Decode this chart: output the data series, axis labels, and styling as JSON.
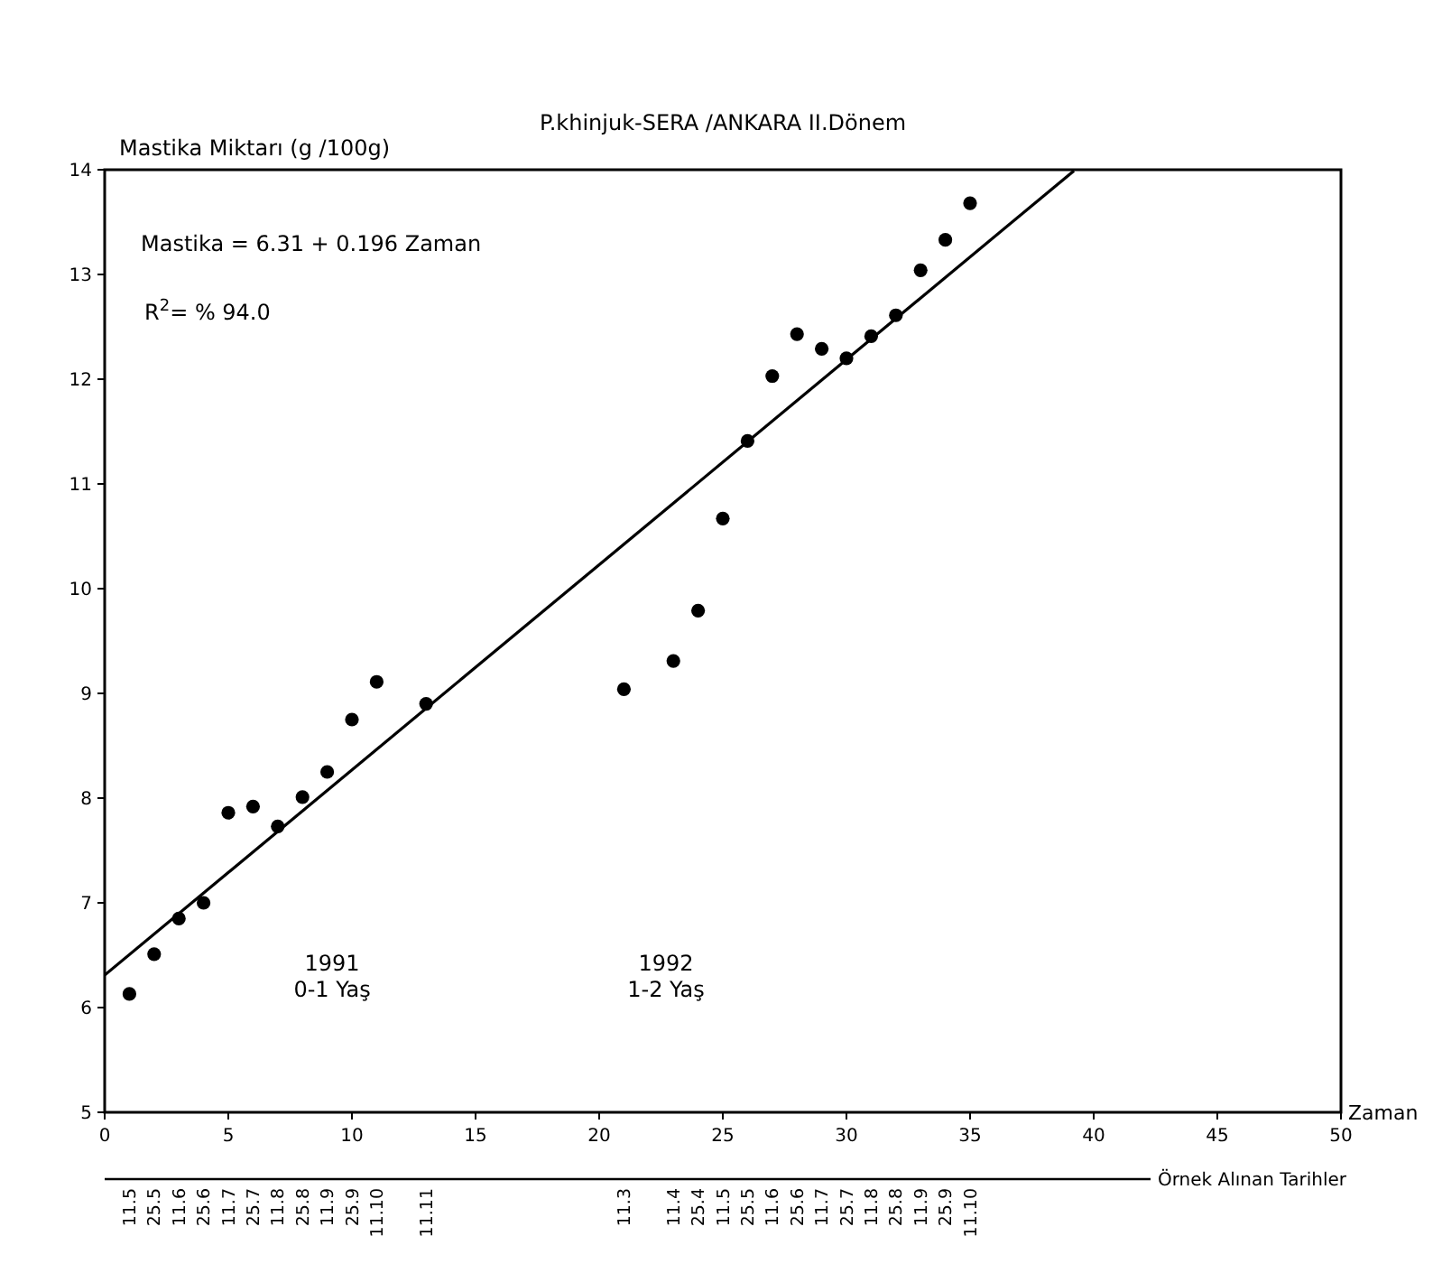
{
  "chart_data": {
    "type": "scatter",
    "title": "P.khinjuk-SERA /ANKARA II.Dönem",
    "ylabel": "Mastika Miktarı (g /100g)",
    "xlabel": "Zaman",
    "xlim": [
      0,
      50
    ],
    "xticks": [
      0,
      5,
      10,
      15,
      20,
      25,
      30,
      35,
      40,
      45,
      50
    ],
    "ylim": [
      5,
      14
    ],
    "yticks": [
      5,
      6,
      7,
      8,
      9,
      10,
      11,
      12,
      13,
      14
    ],
    "grid": false,
    "series": [
      {
        "color": "#000000",
        "marker": "circle",
        "x": [
          1,
          2,
          3,
          4,
          5,
          6,
          7,
          8,
          9,
          10,
          11,
          13,
          21,
          23,
          24,
          25,
          26,
          27,
          28,
          29,
          30,
          31,
          32,
          33,
          34,
          35
        ],
        "values": [
          6.13,
          6.51,
          6.85,
          7.0,
          7.86,
          7.92,
          7.73,
          8.01,
          8.25,
          8.75,
          9.11,
          8.9,
          9.04,
          9.31,
          9.79,
          10.67,
          11.41,
          12.03,
          12.43,
          12.29,
          12.2,
          12.41,
          12.61,
          13.04,
          13.33,
          13.68
        ]
      },
      {
        "type": "line",
        "color": "#000000",
        "line_style": "solid",
        "x": [
          0,
          39.2
        ],
        "values": [
          6.31,
          13.99
        ]
      }
    ],
    "annotations": [
      "Mastika = 6.31 + 0.196 Zaman",
      "R$^{2}$= % 94.0",
      "1991\n0-1 Yaş",
      "1992\n1-2 Yaş",
      "Örnek Alınan Tarihler",
      "11.5",
      "25.5",
      "11.6",
      "25.6",
      "11.7",
      "25.7",
      "11.8",
      "25.8",
      "11.9",
      "25.9",
      "11.10",
      "11.11",
      "11.3",
      "11.4",
      "25.4",
      "11.5",
      "25.5",
      "11.6",
      "25.6",
      "11.7",
      "25.7",
      "11.8",
      "25.8",
      "11.9",
      "25.9",
      "11.10"
    ]
  }
}
